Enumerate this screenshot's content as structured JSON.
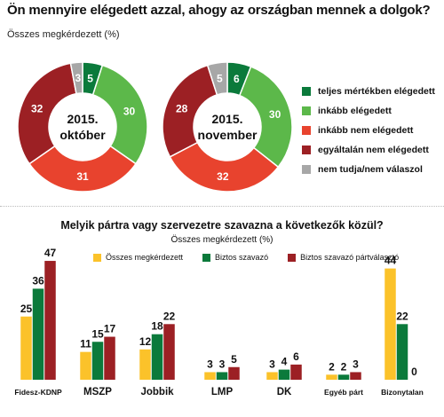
{
  "title": "Ön mennyire elégedett azzal, ahogy az országban mennek a dolgok?",
  "subtitle": "Összes megkérdezett (%)",
  "colors": {
    "dark_green": "#0b7a3b",
    "light_green": "#5cb84a",
    "light_red": "#e8432e",
    "dark_red": "#9c2024",
    "gray": "#a7a7a7",
    "yellow": "#fbc22a"
  },
  "chart_data": [
    {
      "type": "pie",
      "variant": "donut",
      "title": "Ön mennyire elégedett azzal, ahogy az országban mennek a dolgok?",
      "subtitle": "Összes megkérdezett (%)",
      "categories": [
        "teljes mértékben elégedett",
        "inkább elégedett",
        "inkább nem elégedett",
        "egyáltalán nem elégedett",
        "nem tudja/nem válaszol"
      ],
      "series": [
        {
          "name": "2015. október",
          "center_label": [
            "2015.",
            "október"
          ],
          "values": [
            5,
            30,
            31,
            32,
            3
          ]
        },
        {
          "name": "2015. november",
          "center_label": [
            "2015.",
            "november"
          ],
          "values": [
            6,
            30,
            32,
            28,
            5
          ]
        }
      ],
      "legend_position": "right"
    },
    {
      "type": "bar",
      "title": "Melyik pártra vagy szervezetre szavazna a következők közül?",
      "subtitle": "Összes megkérdezett (%)",
      "categories": [
        "Fidesz-KDNP",
        "MSZP",
        "Jobbik",
        "LMP",
        "DK",
        "Egyéb párt",
        "Bizonytalan"
      ],
      "series": [
        {
          "name": "Összes megkérdezett",
          "values": [
            25,
            11,
            12,
            3,
            3,
            2,
            44
          ]
        },
        {
          "name": "Biztos szavazó",
          "values": [
            36,
            15,
            18,
            3,
            4,
            2,
            22
          ]
        },
        {
          "name": "Biztos szavazó pártválasztó",
          "values": [
            47,
            17,
            22,
            5,
            6,
            3,
            null
          ]
        }
      ],
      "value_labels": [
        [
          "25",
          "36",
          "47"
        ],
        [
          "11",
          "15",
          "17"
        ],
        [
          "12",
          "18",
          "22"
        ],
        [
          "3",
          "3",
          "5"
        ],
        [
          "3",
          "4",
          "6"
        ],
        [
          "2",
          "2",
          "3"
        ],
        [
          "44",
          "22",
          "0"
        ]
      ],
      "legend_position": "top"
    }
  ]
}
